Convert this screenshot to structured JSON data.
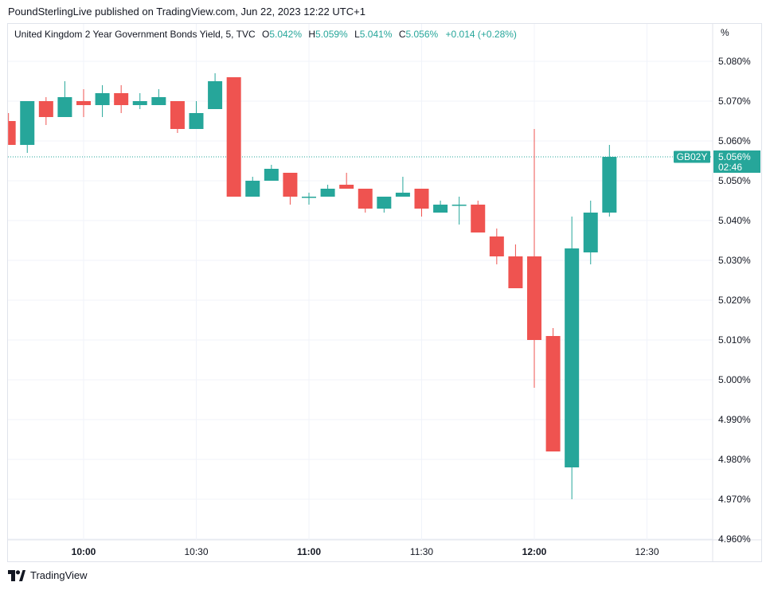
{
  "header": {
    "published": "PoundSterlingLive published on TradingView.com, Jun 22, 2023 12:22 UTC+1"
  },
  "legend": {
    "symbol": "United Kingdom 2 Year Government Bonds Yield, 5, TVC",
    "o_label": "O",
    "o_value": "5.042%",
    "h_label": "H",
    "h_value": "5.059%",
    "l_label": "L",
    "l_value": "5.041%",
    "c_label": "C",
    "c_value": "5.056%",
    "change": "+0.014 (+0.28%)"
  },
  "unit_label": "%",
  "price_badge": {
    "ticker": "GB02Y",
    "price": "5.056%",
    "countdown": "02:46"
  },
  "branding": {
    "name": "TradingView"
  },
  "colors": {
    "up": "#26a69a",
    "down": "#ef5350",
    "grid": "#f0f3fa",
    "border": "#e0e3eb"
  },
  "chart_data": {
    "type": "candlestick",
    "interval_minutes": 5,
    "y_ticks": [
      "5.080%",
      "5.070%",
      "5.060%",
      "5.050%",
      "5.040%",
      "5.030%",
      "5.020%",
      "5.010%",
      "5.000%",
      "4.990%",
      "4.980%",
      "4.970%",
      "4.960%"
    ],
    "x_ticks": [
      {
        "label": "10:00",
        "time": "10:00",
        "bold": true
      },
      {
        "label": "10:30",
        "time": "10:30",
        "bold": false
      },
      {
        "label": "11:00",
        "time": "11:00",
        "bold": true
      },
      {
        "label": "11:30",
        "time": "11:30",
        "bold": false
      },
      {
        "label": "12:00",
        "time": "12:00",
        "bold": true
      },
      {
        "label": "12:30",
        "time": "12:30",
        "bold": false
      }
    ],
    "last_price": 5.056,
    "candles": [
      {
        "time": "09:40",
        "o": 5.065,
        "h": 5.067,
        "l": 5.059,
        "c": 5.059
      },
      {
        "time": "09:45",
        "o": 5.059,
        "h": 5.07,
        "l": 5.057,
        "c": 5.07
      },
      {
        "time": "09:50",
        "o": 5.07,
        "h": 5.071,
        "l": 5.064,
        "c": 5.066
      },
      {
        "time": "09:55",
        "o": 5.066,
        "h": 5.075,
        "l": 5.066,
        "c": 5.071
      },
      {
        "time": "10:00",
        "o": 5.07,
        "h": 5.073,
        "l": 5.066,
        "c": 5.069
      },
      {
        "time": "10:05",
        "o": 5.069,
        "h": 5.074,
        "l": 5.066,
        "c": 5.072
      },
      {
        "time": "10:10",
        "o": 5.072,
        "h": 5.074,
        "l": 5.067,
        "c": 5.069
      },
      {
        "time": "10:15",
        "o": 5.069,
        "h": 5.072,
        "l": 5.068,
        "c": 5.07
      },
      {
        "time": "10:20",
        "o": 5.069,
        "h": 5.073,
        "l": 5.069,
        "c": 5.071
      },
      {
        "time": "10:25",
        "o": 5.07,
        "h": 5.07,
        "l": 5.062,
        "c": 5.063
      },
      {
        "time": "10:30",
        "o": 5.063,
        "h": 5.07,
        "l": 5.063,
        "c": 5.067
      },
      {
        "time": "10:35",
        "o": 5.068,
        "h": 5.077,
        "l": 5.068,
        "c": 5.075
      },
      {
        "time": "10:40",
        "o": 5.076,
        "h": 5.076,
        "l": 5.046,
        "c": 5.046
      },
      {
        "time": "10:45",
        "o": 5.046,
        "h": 5.051,
        "l": 5.046,
        "c": 5.05
      },
      {
        "time": "10:50",
        "o": 5.05,
        "h": 5.054,
        "l": 5.05,
        "c": 5.053
      },
      {
        "time": "10:55",
        "o": 5.052,
        "h": 5.052,
        "l": 5.044,
        "c": 5.046
      },
      {
        "time": "11:00",
        "o": 5.046,
        "h": 5.047,
        "l": 5.044,
        "c": 5.046
      },
      {
        "time": "11:05",
        "o": 5.046,
        "h": 5.049,
        "l": 5.046,
        "c": 5.048
      },
      {
        "time": "11:10",
        "o": 5.049,
        "h": 5.052,
        "l": 5.048,
        "c": 5.048
      },
      {
        "time": "11:15",
        "o": 5.048,
        "h": 5.048,
        "l": 5.042,
        "c": 5.043
      },
      {
        "time": "11:20",
        "o": 5.043,
        "h": 5.046,
        "l": 5.042,
        "c": 5.046
      },
      {
        "time": "11:25",
        "o": 5.046,
        "h": 5.051,
        "l": 5.046,
        "c": 5.047
      },
      {
        "time": "11:30",
        "o": 5.048,
        "h": 5.048,
        "l": 5.041,
        "c": 5.043
      },
      {
        "time": "11:35",
        "o": 5.042,
        "h": 5.045,
        "l": 5.042,
        "c": 5.044
      },
      {
        "time": "11:40",
        "o": 5.044,
        "h": 5.046,
        "l": 5.039,
        "c": 5.044
      },
      {
        "time": "11:45",
        "o": 5.044,
        "h": 5.045,
        "l": 5.037,
        "c": 5.037
      },
      {
        "time": "11:50",
        "o": 5.036,
        "h": 5.038,
        "l": 5.029,
        "c": 5.031
      },
      {
        "time": "11:55",
        "o": 5.031,
        "h": 5.034,
        "l": 5.023,
        "c": 5.023
      },
      {
        "time": "12:00",
        "o": 5.031,
        "h": 5.063,
        "l": 4.998,
        "c": 5.01
      },
      {
        "time": "12:05",
        "o": 5.011,
        "h": 5.013,
        "l": 4.982,
        "c": 4.982
      },
      {
        "time": "12:10",
        "o": 4.978,
        "h": 5.041,
        "l": 4.97,
        "c": 5.033
      },
      {
        "time": "12:15",
        "o": 5.032,
        "h": 5.045,
        "l": 5.029,
        "c": 5.042
      },
      {
        "time": "12:20",
        "o": 5.042,
        "h": 5.059,
        "l": 5.041,
        "c": 5.056
      }
    ]
  }
}
